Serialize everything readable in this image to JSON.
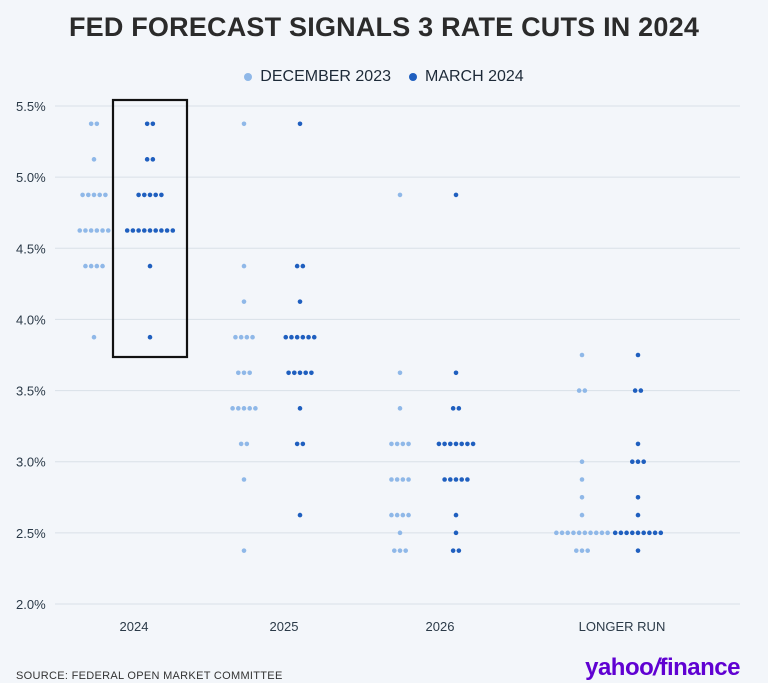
{
  "chart_data": {
    "type": "scatter",
    "title": "FED FORECAST SIGNALS 3 RATE CUTS IN 2024",
    "categories": [
      "2024",
      "2025",
      "2026",
      "LONGER RUN"
    ],
    "y_tick_labels": [
      "2.0%",
      "2.5%",
      "3.0%",
      "3.5%",
      "4.0%",
      "4.5%",
      "5.0%",
      "5.5%"
    ],
    "ylim": [
      2.0,
      5.5
    ],
    "grid": true,
    "legend_position": "top-center",
    "colors": {
      "december_2023": "#8fb8e8",
      "march_2024": "#1f5fbf",
      "highlight_box": "#111111"
    },
    "series": [
      {
        "name": "DECEMBER 2023",
        "points": [
          {
            "category": "2024",
            "rates": [
              {
                "y": 5.375,
                "count": 2
              },
              {
                "y": 5.125,
                "count": 1
              },
              {
                "y": 4.875,
                "count": 5
              },
              {
                "y": 4.625,
                "count": 6
              },
              {
                "y": 4.375,
                "count": 4
              },
              {
                "y": 3.875,
                "count": 1
              }
            ]
          },
          {
            "category": "2025",
            "rates": [
              {
                "y": 5.375,
                "count": 1
              },
              {
                "y": 4.375,
                "count": 1
              },
              {
                "y": 4.125,
                "count": 1
              },
              {
                "y": 3.875,
                "count": 4
              },
              {
                "y": 3.625,
                "count": 3
              },
              {
                "y": 3.375,
                "count": 5
              },
              {
                "y": 3.125,
                "count": 2
              },
              {
                "y": 2.875,
                "count": 1
              },
              {
                "y": 2.375,
                "count": 1
              }
            ]
          },
          {
            "category": "2026",
            "rates": [
              {
                "y": 4.875,
                "count": 1
              },
              {
                "y": 3.625,
                "count": 1
              },
              {
                "y": 3.375,
                "count": 1
              },
              {
                "y": 3.125,
                "count": 4
              },
              {
                "y": 2.875,
                "count": 4
              },
              {
                "y": 2.625,
                "count": 4
              },
              {
                "y": 2.5,
                "count": 1
              },
              {
                "y": 2.375,
                "count": 3
              }
            ]
          },
          {
            "category": "LONGER RUN",
            "rates": [
              {
                "y": 3.75,
                "count": 1
              },
              {
                "y": 3.5,
                "count": 2
              },
              {
                "y": 3.0,
                "count": 1
              },
              {
                "y": 2.875,
                "count": 1
              },
              {
                "y": 2.75,
                "count": 1
              },
              {
                "y": 2.625,
                "count": 1
              },
              {
                "y": 2.5,
                "count": 10
              },
              {
                "y": 2.375,
                "count": 3
              }
            ]
          }
        ]
      },
      {
        "name": "MARCH 2024",
        "points": [
          {
            "category": "2024",
            "rates": [
              {
                "y": 5.375,
                "count": 2
              },
              {
                "y": 5.125,
                "count": 2
              },
              {
                "y": 4.875,
                "count": 5
              },
              {
                "y": 4.625,
                "count": 9
              },
              {
                "y": 4.375,
                "count": 1
              },
              {
                "y": 3.875,
                "count": 1
              }
            ]
          },
          {
            "category": "2025",
            "rates": [
              {
                "y": 5.375,
                "count": 1
              },
              {
                "y": 4.375,
                "count": 2
              },
              {
                "y": 4.125,
                "count": 1
              },
              {
                "y": 3.875,
                "count": 6
              },
              {
                "y": 3.625,
                "count": 5
              },
              {
                "y": 3.375,
                "count": 1
              },
              {
                "y": 3.125,
                "count": 2
              },
              {
                "y": 2.625,
                "count": 1
              }
            ]
          },
          {
            "category": "2026",
            "rates": [
              {
                "y": 4.875,
                "count": 1
              },
              {
                "y": 3.625,
                "count": 1
              },
              {
                "y": 3.375,
                "count": 2
              },
              {
                "y": 3.125,
                "count": 7
              },
              {
                "y": 2.875,
                "count": 5
              },
              {
                "y": 2.625,
                "count": 1
              },
              {
                "y": 2.5,
                "count": 1
              },
              {
                "y": 2.375,
                "count": 2
              }
            ]
          },
          {
            "category": "LONGER RUN",
            "rates": [
              {
                "y": 3.75,
                "count": 1
              },
              {
                "y": 3.5,
                "count": 2
              },
              {
                "y": 3.125,
                "count": 1
              },
              {
                "y": 3.0,
                "count": 3
              },
              {
                "y": 2.75,
                "count": 1
              },
              {
                "y": 2.625,
                "count": 1
              },
              {
                "y": 2.5,
                "count": 9
              },
              {
                "y": 2.375,
                "count": 1
              }
            ]
          }
        ]
      }
    ],
    "highlight": {
      "series": "MARCH 2024",
      "category": "2024",
      "y_range": [
        3.75,
        5.5
      ]
    }
  },
  "footer": {
    "source": "SOURCE: FEDERAL OPEN MARKET COMMITTEE",
    "brand_left": "yahoo",
    "brand_slash": "/",
    "brand_right": "finance"
  }
}
